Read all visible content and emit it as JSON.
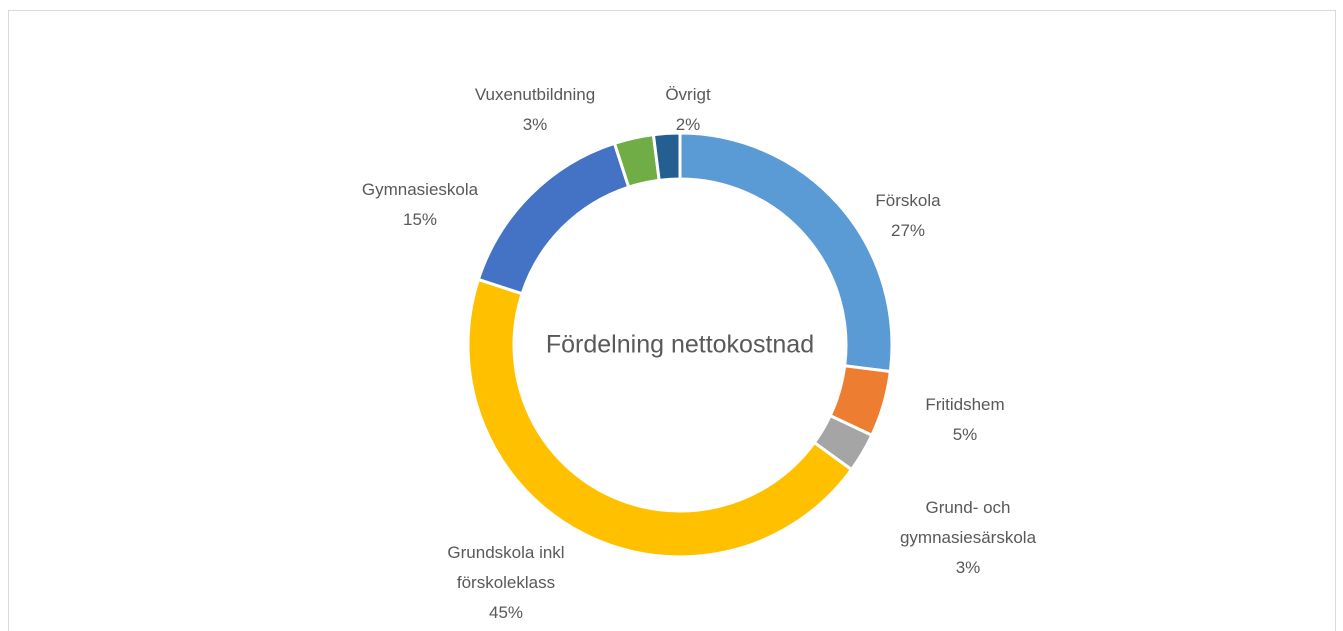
{
  "chart_data": {
    "type": "donut",
    "title": "Fördelning nettokostnad",
    "categories": [
      "Förskola",
      "Fritidshem",
      "Grund- och gymnasiesärskola",
      "Grundskola inkl förskoleklass",
      "Gymnasieskola",
      "Vuxenutbildning",
      "Övrigt"
    ],
    "values": [
      27,
      5,
      3,
      45,
      15,
      3,
      2
    ],
    "value_labels": [
      "27%",
      "5%",
      "3%",
      "45%",
      "15%",
      "3%",
      "2%"
    ],
    "colors": [
      "#5b9bd5",
      "#ed7d31",
      "#a5a5a5",
      "#ffc000",
      "#4472c4",
      "#70ad47",
      "#255e91"
    ]
  }
}
